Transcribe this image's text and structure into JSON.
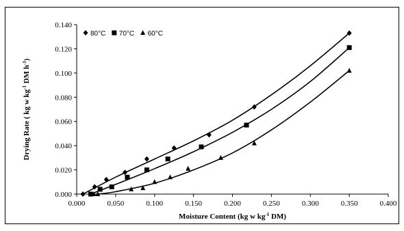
{
  "chart_data": {
    "type": "scatter",
    "xlabel": "Moisture Content (kg w kg",
    "xlabel_sup": "-1",
    "xlabel_tail": " DM)",
    "ylabel": "Drying Rate ( kg w kg",
    "ylabel_sup": "-1",
    "ylabel_tail": " DM h",
    "ylabel_sup2": "-1",
    "ylabel_end": ")",
    "xlim": [
      0.0,
      0.4
    ],
    "ylim": [
      0.0,
      0.14
    ],
    "x_ticks": [
      "0.000",
      "0.050",
      "0.100",
      "0.150",
      "0.200",
      "0.250",
      "0.300",
      "0.350",
      "0.400"
    ],
    "y_ticks": [
      "0.000",
      "0.020",
      "0.040",
      "0.060",
      "0.080",
      "0.100",
      "0.120",
      "0.140"
    ],
    "grid": false,
    "legend_position": "top-left",
    "series": [
      {
        "name": "80°C",
        "marker": "diamond",
        "points": [
          [
            0.008,
            0.0
          ],
          [
            0.023,
            0.006
          ],
          [
            0.038,
            0.012
          ],
          [
            0.062,
            0.018
          ],
          [
            0.09,
            0.029
          ],
          [
            0.125,
            0.038
          ],
          [
            0.17,
            0.049
          ],
          [
            0.228,
            0.072
          ],
          [
            0.35,
            0.133
          ]
        ],
        "fit": [
          [
            0.008,
            0.0
          ],
          [
            0.05,
            0.014
          ],
          [
            0.1,
            0.029
          ],
          [
            0.15,
            0.044
          ],
          [
            0.2,
            0.061
          ],
          [
            0.25,
            0.082
          ],
          [
            0.3,
            0.106
          ],
          [
            0.35,
            0.133
          ]
        ]
      },
      {
        "name": "70°C",
        "marker": "square",
        "points": [
          [
            0.018,
            0.0
          ],
          [
            0.03,
            0.004
          ],
          [
            0.045,
            0.006
          ],
          [
            0.065,
            0.014
          ],
          [
            0.09,
            0.02
          ],
          [
            0.117,
            0.029
          ],
          [
            0.16,
            0.039
          ],
          [
            0.218,
            0.057
          ],
          [
            0.35,
            0.121
          ]
        ],
        "fit": [
          [
            0.018,
            0.0
          ],
          [
            0.05,
            0.008
          ],
          [
            0.1,
            0.021
          ],
          [
            0.15,
            0.035
          ],
          [
            0.2,
            0.051
          ],
          [
            0.25,
            0.07
          ],
          [
            0.3,
            0.093
          ],
          [
            0.35,
            0.121
          ]
        ]
      },
      {
        "name": "60°C",
        "marker": "triangle",
        "points": [
          [
            0.022,
            0.0
          ],
          [
            0.027,
            0.0
          ],
          [
            0.07,
            0.004
          ],
          [
            0.085,
            0.005
          ],
          [
            0.1,
            0.01
          ],
          [
            0.12,
            0.014
          ],
          [
            0.143,
            0.021
          ],
          [
            0.185,
            0.03
          ],
          [
            0.228,
            0.042
          ],
          [
            0.35,
            0.102
          ]
        ],
        "fit": [
          [
            0.027,
            0.0
          ],
          [
            0.05,
            0.002
          ],
          [
            0.1,
            0.009
          ],
          [
            0.15,
            0.02
          ],
          [
            0.2,
            0.034
          ],
          [
            0.25,
            0.053
          ],
          [
            0.3,
            0.076
          ],
          [
            0.35,
            0.102
          ]
        ]
      }
    ]
  }
}
